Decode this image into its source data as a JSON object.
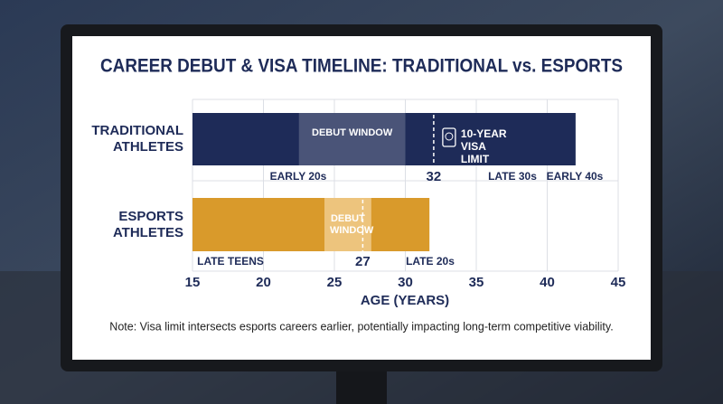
{
  "chart_data": {
    "type": "range_bar",
    "title": "CAREER DEBUT & VISA TIMELINE: TRADITIONAL vs. ESPORTS",
    "xlabel": "AGE (YEARS)",
    "xlim": [
      15,
      45
    ],
    "xticks": [
      15,
      20,
      25,
      30,
      35,
      40,
      45
    ],
    "grid": true,
    "bars": [
      {
        "label": "TRADITIONAL ATHLETES",
        "start": 15,
        "end": 42,
        "color": "#1e2b58",
        "debut": {
          "label": "DEBUT WINDOW",
          "start": 22.5,
          "end": 30,
          "color": "#4a5478"
        },
        "visa": {
          "value": 32,
          "label": "10-YEAR VISA LIMIT"
        },
        "phases": [
          "EARLY 20s",
          "LATE 30s",
          "EARLY 40s"
        ]
      },
      {
        "label": "ESPORTS ATHLETES",
        "start": 15,
        "end": 31.7,
        "color": "#d99a2b",
        "debut": {
          "label": "DEBUT WINDOW",
          "start": 24.3,
          "end": 27.6,
          "color": "#edc47d"
        },
        "visa": {
          "value": 27
        },
        "phases": [
          "LATE TEENS",
          "LATE 20s"
        ]
      }
    ],
    "note": "Note: Visa limit intersects esports careers earlier, potentially impacting long-term competitive viability."
  }
}
